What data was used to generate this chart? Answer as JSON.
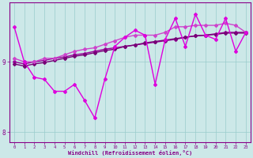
{
  "background_color": "#cce8e8",
  "grid_color": "#99cccc",
  "xlabel": "Windchill (Refroidissement éolien,°C)",
  "xlabel_color": "#880088",
  "tick_color": "#880088",
  "spine_color": "#880088",
  "xlim": [
    -0.5,
    23.5
  ],
  "ylim": [
    7.85,
    9.85
  ],
  "yticks": [
    8,
    9
  ],
  "xticks": [
    0,
    1,
    2,
    3,
    4,
    5,
    6,
    7,
    8,
    9,
    10,
    11,
    12,
    13,
    14,
    15,
    16,
    17,
    18,
    19,
    20,
    21,
    22,
    23
  ],
  "series": [
    {
      "x": [
        0,
        1,
        2,
        3,
        4,
        5,
        6,
        7,
        8,
        9,
        10,
        11,
        12,
        13,
        14,
        15,
        16,
        17,
        18,
        19,
        20,
        21,
        22,
        23
      ],
      "y": [
        9.0,
        8.97,
        9.0,
        9.02,
        9.05,
        9.07,
        9.1,
        9.12,
        9.15,
        9.18,
        9.2,
        9.22,
        9.24,
        9.26,
        9.28,
        9.3,
        9.32,
        9.35,
        9.37,
        9.38,
        9.4,
        9.42,
        9.42,
        9.42
      ],
      "color": "#990099",
      "lw": 1.0,
      "marker": "D",
      "ms": 2.0
    },
    {
      "x": [
        0,
        1,
        2,
        3,
        4,
        5,
        6,
        7,
        8,
        9,
        10,
        11,
        12,
        13,
        14,
        15,
        16,
        17,
        18,
        19,
        20,
        21,
        22,
        23
      ],
      "y": [
        8.97,
        8.94,
        8.97,
        8.99,
        9.02,
        9.05,
        9.08,
        9.1,
        9.13,
        9.16,
        9.18,
        9.22,
        9.24,
        9.27,
        9.29,
        9.31,
        9.33,
        9.35,
        9.37,
        9.38,
        9.39,
        9.41,
        9.41,
        9.41
      ],
      "color": "#770077",
      "lw": 1.0,
      "marker": "D",
      "ms": 2.0
    },
    {
      "x": [
        0,
        1,
        2,
        3,
        4,
        5,
        6,
        7,
        8,
        9,
        10,
        11,
        12,
        13,
        14,
        15,
        16,
        17,
        18,
        19,
        20,
        21,
        22,
        23
      ],
      "y": [
        9.05,
        9.0,
        9.0,
        9.05,
        9.05,
        9.1,
        9.15,
        9.18,
        9.2,
        9.25,
        9.3,
        9.35,
        9.38,
        9.38,
        9.38,
        9.42,
        9.5,
        9.5,
        9.52,
        9.52,
        9.52,
        9.55,
        9.52,
        9.42
      ],
      "color": "#cc44cc",
      "lw": 1.0,
      "marker": "D",
      "ms": 2.0
    },
    {
      "x": [
        0,
        1,
        2,
        3,
        4,
        5,
        6,
        7,
        8,
        9,
        10,
        11,
        12,
        13,
        14,
        15,
        16,
        17,
        18,
        19,
        20,
        21,
        22,
        23
      ],
      "y": [
        9.5,
        9.0,
        8.78,
        8.75,
        8.58,
        8.58,
        8.68,
        8.45,
        8.2,
        8.75,
        9.22,
        9.35,
        9.45,
        9.38,
        8.68,
        9.32,
        9.62,
        9.22,
        9.68,
        9.38,
        9.32,
        9.62,
        9.15,
        9.42
      ],
      "color": "#dd00dd",
      "lw": 1.0,
      "marker": "D",
      "ms": 2.0
    }
  ]
}
